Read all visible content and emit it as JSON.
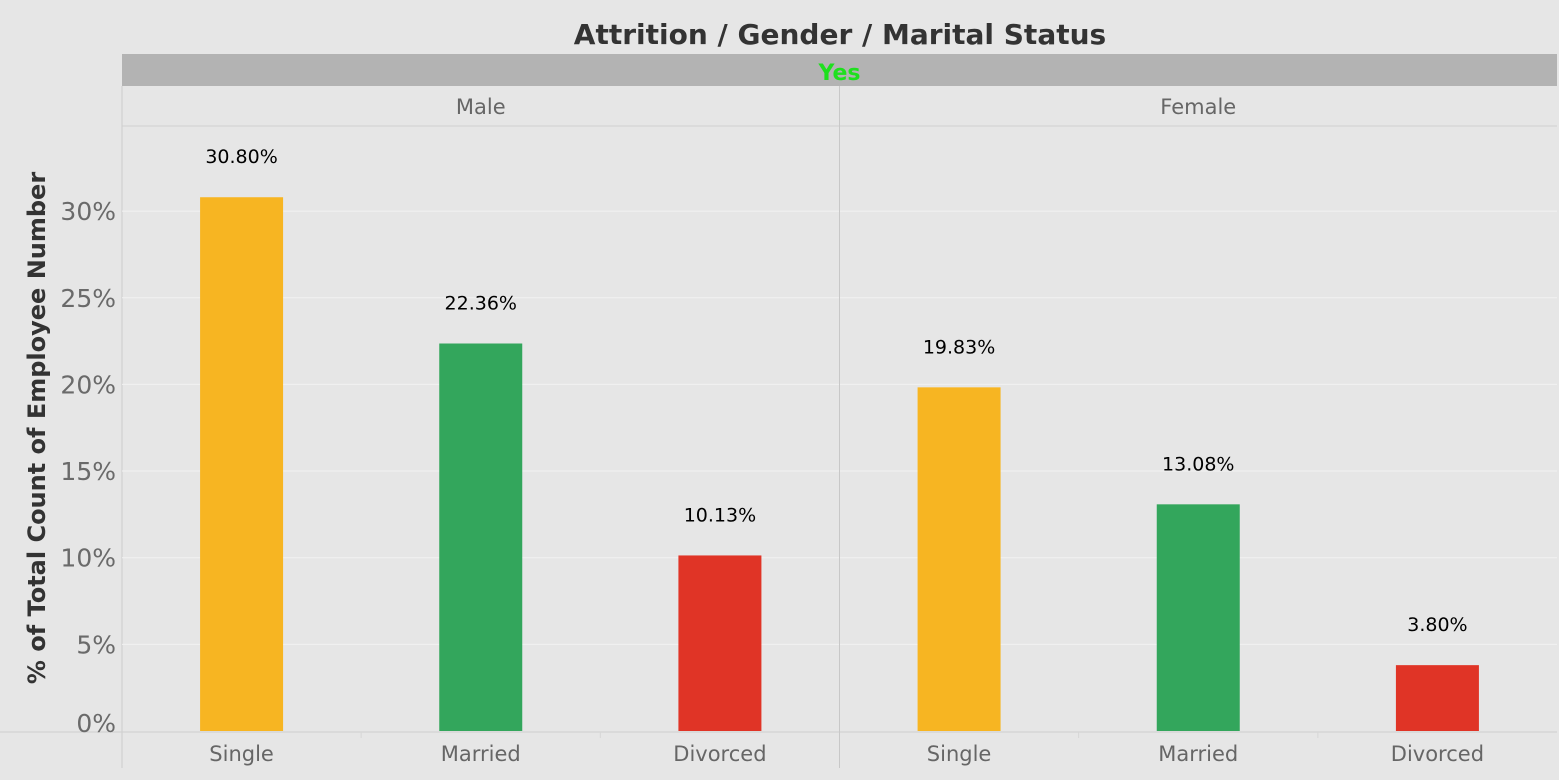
{
  "chart_data": {
    "type": "bar",
    "title": "Attrition / Gender / Marital Status",
    "outer_facet": {
      "label": "Yes",
      "color": "#1ee01e"
    },
    "facets": [
      "Male",
      "Female"
    ],
    "categories": [
      "Single",
      "Married",
      "Divorced"
    ],
    "values": {
      "Male": [
        30.8,
        22.36,
        10.13
      ],
      "Female": [
        19.83,
        13.08,
        3.8
      ]
    },
    "data_labels": {
      "Male": [
        "30.80%",
        "22.36%",
        "10.13%"
      ],
      "Female": [
        "19.83%",
        "13.08%",
        "3.80%"
      ]
    },
    "colors": {
      "Single": "#f7b522",
      "Married": "#33a65c",
      "Divorced": "#e03426"
    },
    "ylabel": "% of Total Count of Employee Number",
    "xlabel": "",
    "ylim": [
      0,
      35
    ],
    "yticks": [
      0,
      5,
      10,
      15,
      20,
      25,
      30
    ],
    "ytick_labels": [
      "0%",
      "5%",
      "10%",
      "15%",
      "20%",
      "25%",
      "30%"
    ],
    "grid": true,
    "background": "#e6e6e6"
  }
}
